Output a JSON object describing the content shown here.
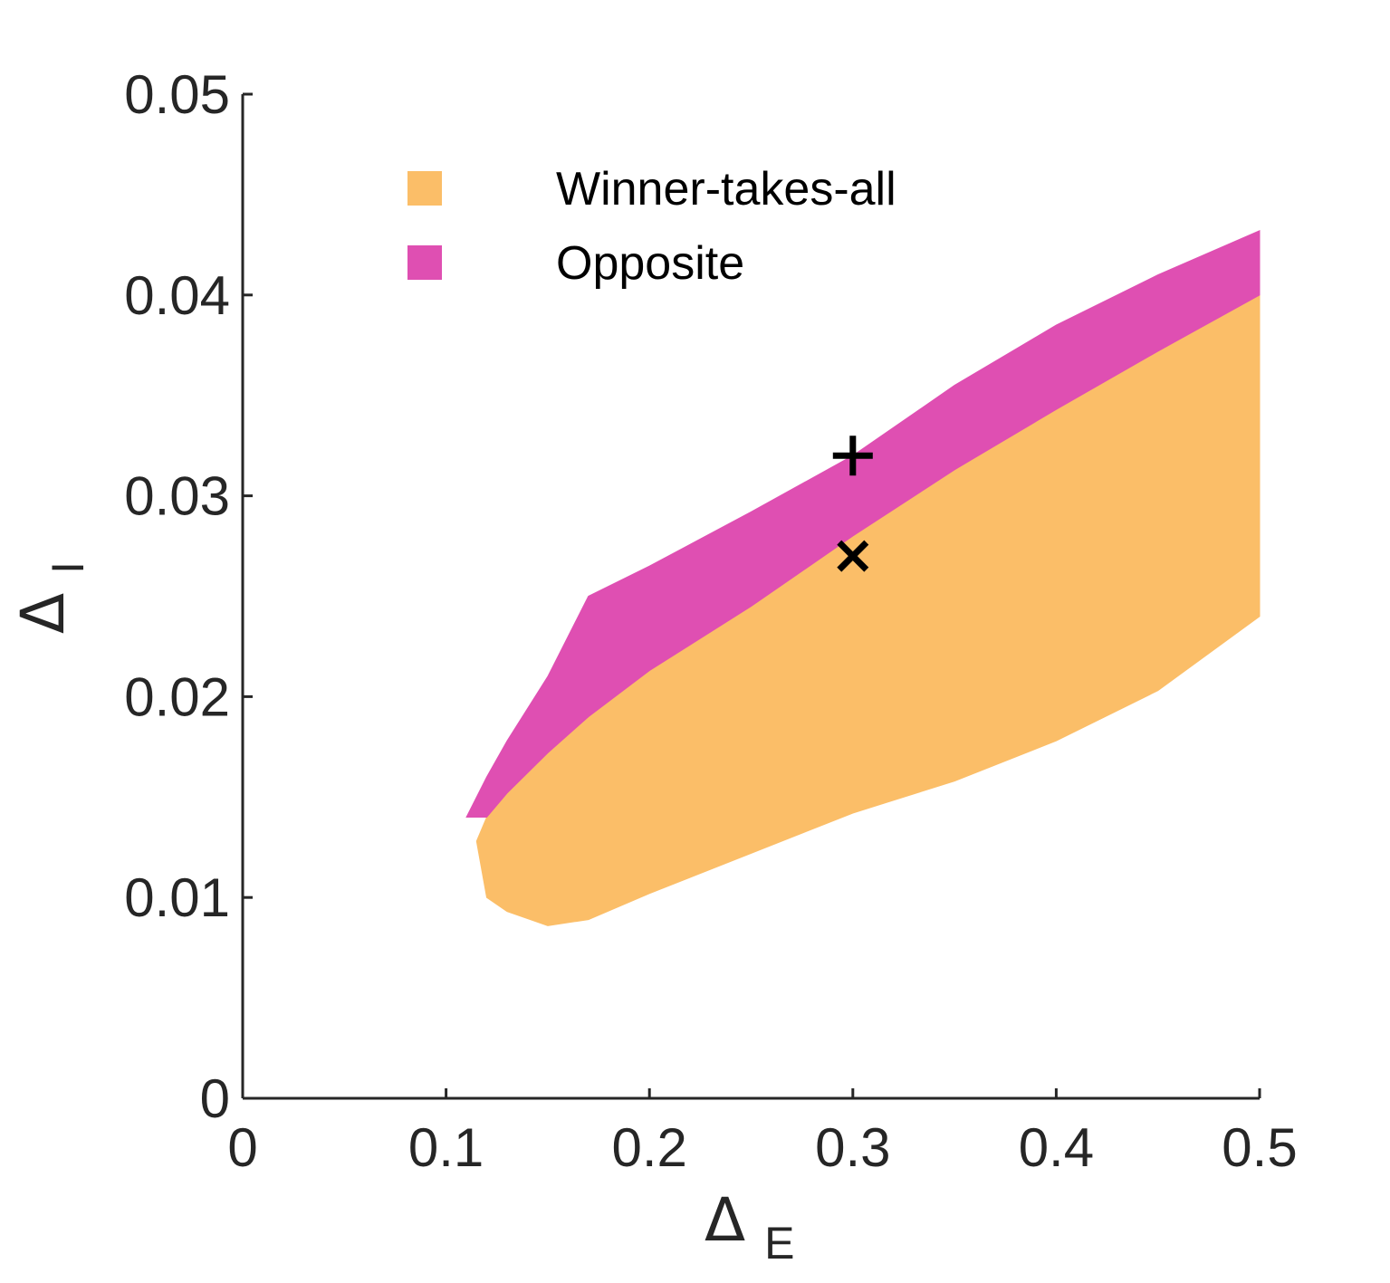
{
  "chart_data": {
    "type": "area",
    "title": "",
    "xlabel": "Δ",
    "xlabel_sub": "E",
    "ylabel": "Δ",
    "ylabel_sub": "I",
    "xlim": [
      0,
      0.5
    ],
    "ylim": [
      0,
      0.05
    ],
    "x_ticks": [
      "0",
      "0.1",
      "0.2",
      "0.3",
      "0.4",
      "0.5"
    ],
    "y_ticks": [
      "0",
      "0.01",
      "0.02",
      "0.03",
      "0.04",
      "0.05"
    ],
    "grid": false,
    "legend_position": "top-left",
    "series": [
      {
        "name": "Winner-takes-all",
        "color": "#FBBE68",
        "x": [
          0.115,
          0.12,
          0.13,
          0.15,
          0.17,
          0.2,
          0.25,
          0.3,
          0.35,
          0.4,
          0.45,
          0.5
        ],
        "upper": [
          0.0128,
          0.014,
          0.0152,
          0.0172,
          0.019,
          0.0213,
          0.0245,
          0.028,
          0.0313,
          0.0343,
          0.0372,
          0.04
        ],
        "lower": [
          0.0128,
          0.01,
          0.0093,
          0.0086,
          0.0089,
          0.0102,
          0.0122,
          0.0142,
          0.0158,
          0.0178,
          0.0203,
          0.024
        ]
      },
      {
        "name": "Opposite",
        "color": "#DF4FB2",
        "x": [
          0.11,
          0.12,
          0.13,
          0.15,
          0.17,
          0.2,
          0.25,
          0.3,
          0.35,
          0.4,
          0.45,
          0.5
        ],
        "upper": [
          0.014,
          0.016,
          0.0178,
          0.021,
          0.025,
          0.0265,
          0.0292,
          0.032,
          0.0355,
          0.0385,
          0.041,
          0.0432
        ],
        "lower": [
          0.014,
          0.014,
          0.0152,
          0.0172,
          0.019,
          0.0213,
          0.0245,
          0.028,
          0.0313,
          0.0343,
          0.0372,
          0.04
        ]
      }
    ],
    "markers": [
      {
        "symbol": "+",
        "x": 0.3,
        "y": 0.032
      },
      {
        "symbol": "×",
        "x": 0.3,
        "y": 0.027
      }
    ]
  }
}
